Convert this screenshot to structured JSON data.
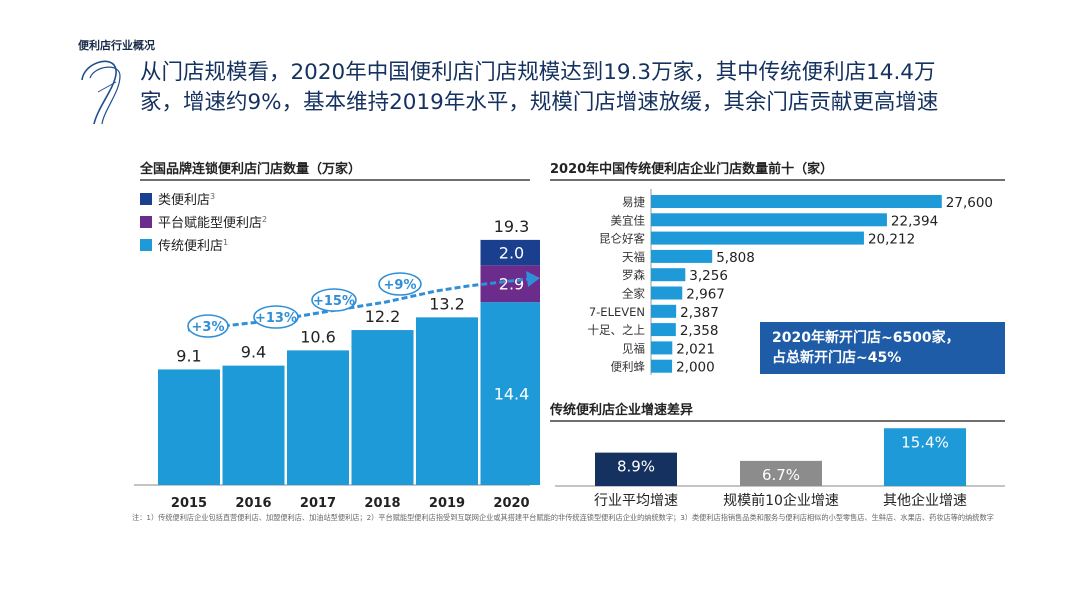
{
  "section_label": "便利店行业概况",
  "headline": {
    "line1": "从门店规模看，2020年中国便利店门店规模达到19.3万家，其中传统便利店14.4万",
    "line2": "家，增速约9%，基本维持2019年水平，规模门店增速放缓，其余门店贡献更高增速"
  },
  "colors": {
    "traditional": "#1f9ad8",
    "platform": "#6b2c8c",
    "convenience_like": "#1a3f8f",
    "navy": "#14315f",
    "gray": "#8c8c8c",
    "growth_arrow": "#2f8fd8"
  },
  "callout": {
    "line1": "2020年新开门店~6500家，",
    "line2": "占总新开门店~45%"
  },
  "footnote": "注：1）传统便利店企业包括直营便利店、加盟便利店、加油站型便利店；2）平台赋能型便利店指受到互联网企业或其搭建平台赋能的非传统连锁型便利店企业的纳统数字；3）类便利店指销售品类和服务与便利店相似的小型零售店、生鲜店、水果店、药妆店等的纳统数字",
  "chart_data": [
    {
      "type": "bar",
      "stacked": true,
      "title": "全国品牌连锁便利店门店数量（万家）",
      "categories": [
        "2015",
        "2016",
        "2017",
        "2018",
        "2019",
        "2020"
      ],
      "series": [
        {
          "name": "传统便利店",
          "sup": "1",
          "values": [
            9.1,
            9.4,
            10.6,
            12.2,
            13.2,
            14.4
          ]
        },
        {
          "name": "平台赋能型便利店",
          "sup": "2",
          "values": [
            0,
            0,
            0,
            0,
            0,
            2.9
          ]
        },
        {
          "name": "类便利店",
          "sup": "3",
          "values": [
            0,
            0,
            0,
            0,
            0,
            2.0
          ]
        }
      ],
      "totals": [
        9.1,
        9.4,
        10.6,
        12.2,
        13.2,
        19.3
      ],
      "total_labels": [
        "9.1",
        "9.4",
        "10.6",
        "12.2",
        "13.2",
        "19.3"
      ],
      "segment_labels_2020": [
        "14.4",
        "2.9",
        "2.0"
      ],
      "growth_labels": [
        "+3%",
        "+13%",
        "+15%",
        "+9%"
      ],
      "ylim": [
        0,
        20
      ],
      "legend_position": "top-left"
    },
    {
      "type": "bar",
      "orientation": "horizontal",
      "title": "2020年中国传统便利店企业门店数量前十（家）",
      "categories": [
        "易捷",
        "美宜佳",
        "昆仑好客",
        "天福",
        "罗森",
        "全家",
        "7-ELEVEN",
        "十足、之上",
        "见福",
        "便利蜂"
      ],
      "values": [
        27600,
        22394,
        20212,
        5808,
        3256,
        2967,
        2387,
        2358,
        2021,
        2000
      ],
      "value_labels": [
        "27,600",
        "22,394",
        "20,212",
        "5,808",
        "3,256",
        "2,967",
        "2,387",
        "2,358",
        "2,021",
        "2,000"
      ],
      "xlim": [
        0,
        28000
      ]
    },
    {
      "type": "bar",
      "title": "传统便利店企业增速差异",
      "categories": [
        "行业平均增速",
        "规模前10企业增速",
        "其他企业增速"
      ],
      "values": [
        8.9,
        6.7,
        15.4
      ],
      "value_labels": [
        "8.9%",
        "6.7%",
        "15.4%"
      ],
      "ylim": [
        0,
        16
      ]
    }
  ]
}
